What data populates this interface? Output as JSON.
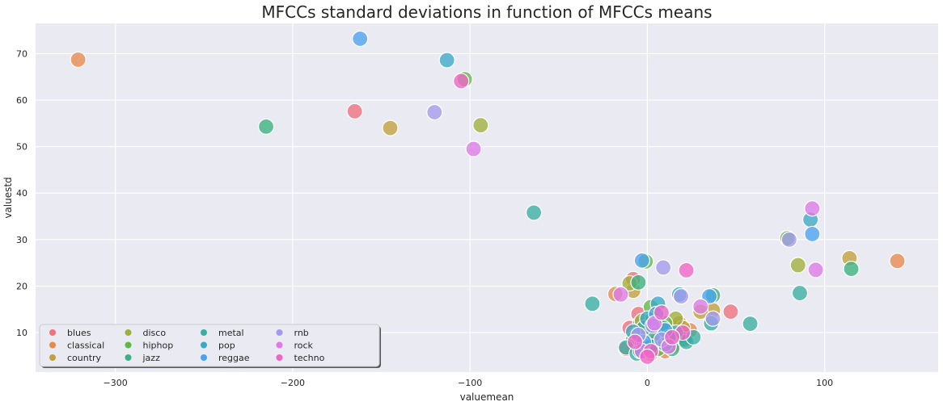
{
  "chart_data": {
    "type": "scatter",
    "title": "MFCCs standard deviations in function of MFCCs means",
    "xlabel": "valuemean",
    "ylabel": "valuestd",
    "xlim": [
      -345,
      164
    ],
    "ylim": [
      1.5,
      76.5
    ],
    "xticks": [
      -300,
      -200,
      -100,
      0,
      100
    ],
    "yticks": [
      10,
      20,
      30,
      40,
      50,
      60,
      70
    ],
    "grid": true,
    "legend_position": "lower-left",
    "series": [
      {
        "name": "blues",
        "color": "#f0707e",
        "points": [
          [
            -165,
            57.6
          ],
          [
            -8,
            21.5
          ],
          [
            -5,
            14
          ],
          [
            -10,
            11
          ],
          [
            -2,
            9
          ],
          [
            3,
            7
          ],
          [
            8,
            10
          ],
          [
            15,
            11
          ],
          [
            22,
            9
          ],
          [
            47,
            14.5
          ],
          [
            -12,
            6.5
          ],
          [
            0,
            8
          ]
        ]
      },
      {
        "name": "classical",
        "color": "#e8894a",
        "points": [
          [
            -321,
            68.7
          ],
          [
            141,
            25.4
          ],
          [
            -18,
            18.3
          ],
          [
            -2,
            10.5
          ],
          [
            5,
            8
          ],
          [
            10,
            6
          ],
          [
            18,
            12
          ],
          [
            24,
            10.5
          ],
          [
            -6,
            7.5
          ],
          [
            2,
            5.5
          ]
        ]
      },
      {
        "name": "country",
        "color": "#c2a03b",
        "points": [
          [
            -145,
            54
          ],
          [
            114,
            26
          ],
          [
            37,
            14.8
          ],
          [
            -8,
            19
          ],
          [
            30,
            14.5
          ],
          [
            -4,
            12
          ],
          [
            6,
            9
          ],
          [
            14,
            7
          ],
          [
            20,
            11
          ]
        ]
      },
      {
        "name": "disco",
        "color": "#9fb03a",
        "points": [
          [
            -94,
            54.6
          ],
          [
            85,
            24.5
          ],
          [
            -10,
            20.6
          ],
          [
            -3,
            12.5
          ],
          [
            8,
            10.5
          ],
          [
            12,
            8
          ],
          [
            -6,
            9.5
          ],
          [
            16,
            13
          ]
        ]
      },
      {
        "name": "hiphop",
        "color": "#5fb845",
        "points": [
          [
            -103,
            64.5
          ],
          [
            79,
            30.3
          ],
          [
            -1,
            25.3
          ],
          [
            2,
            15.5
          ],
          [
            10,
            12
          ],
          [
            -8,
            8.5
          ],
          [
            6,
            6.5
          ],
          [
            18,
            9
          ]
        ]
      },
      {
        "name": "jazz",
        "color": "#3ab27f",
        "points": [
          [
            -215,
            54.3
          ],
          [
            115,
            23.7
          ],
          [
            37,
            18
          ],
          [
            -5,
            20.8
          ],
          [
            3,
            13
          ],
          [
            9,
            11
          ],
          [
            -3,
            7.5
          ],
          [
            14,
            6.5
          ],
          [
            21,
            8.5
          ]
        ]
      },
      {
        "name": "metal",
        "color": "#3aaea2",
        "points": [
          [
            -64,
            35.8
          ],
          [
            86,
            18.5
          ],
          [
            -31,
            16.2
          ],
          [
            58,
            11.9
          ],
          [
            36,
            12
          ],
          [
            22,
            8
          ],
          [
            26,
            9
          ],
          [
            -12,
            6.8
          ],
          [
            -6,
            5.5
          ],
          [
            4,
            9.5
          ],
          [
            10,
            7.5
          ],
          [
            16,
            10
          ],
          [
            -2,
            11
          ]
        ]
      },
      {
        "name": "pop",
        "color": "#3aa9c6",
        "points": [
          [
            -113,
            68.6
          ],
          [
            92,
            34.3
          ],
          [
            -8,
            10.2
          ],
          [
            0,
            13
          ],
          [
            6,
            16.2
          ],
          [
            18,
            18.2
          ],
          [
            12,
            9
          ],
          [
            2,
            7
          ],
          [
            -4,
            6
          ]
        ]
      },
      {
        "name": "reggae",
        "color": "#4aa3ee",
        "points": [
          [
            -162,
            73.2
          ],
          [
            93,
            31.2
          ],
          [
            -3,
            25.5
          ],
          [
            35,
            17.8
          ],
          [
            5,
            14
          ],
          [
            10,
            10.5
          ],
          [
            -2,
            8
          ]
        ]
      },
      {
        "name": "rnb",
        "color": "#a39aee",
        "points": [
          [
            -120,
            57.4
          ],
          [
            80,
            30
          ],
          [
            9,
            24
          ],
          [
            19,
            17.8
          ],
          [
            37,
            13
          ],
          [
            3,
            11.5
          ],
          [
            8,
            8.5
          ],
          [
            -5,
            9.5
          ]
        ]
      },
      {
        "name": "rock",
        "color": "#de7ae8",
        "points": [
          [
            -98,
            49.5
          ],
          [
            93,
            36.7
          ],
          [
            95,
            23.5
          ],
          [
            -15,
            18.2
          ],
          [
            30,
            15.6
          ],
          [
            4,
            12
          ],
          [
            12,
            7
          ],
          [
            -3,
            6
          ]
        ]
      },
      {
        "name": "techno",
        "color": "#f064c6",
        "points": [
          [
            -105,
            64.1
          ],
          [
            22,
            23.4
          ],
          [
            8,
            14.3
          ],
          [
            20,
            10
          ],
          [
            2,
            6
          ],
          [
            0,
            4.8
          ],
          [
            -7,
            8
          ],
          [
            14,
            9
          ]
        ]
      }
    ]
  }
}
